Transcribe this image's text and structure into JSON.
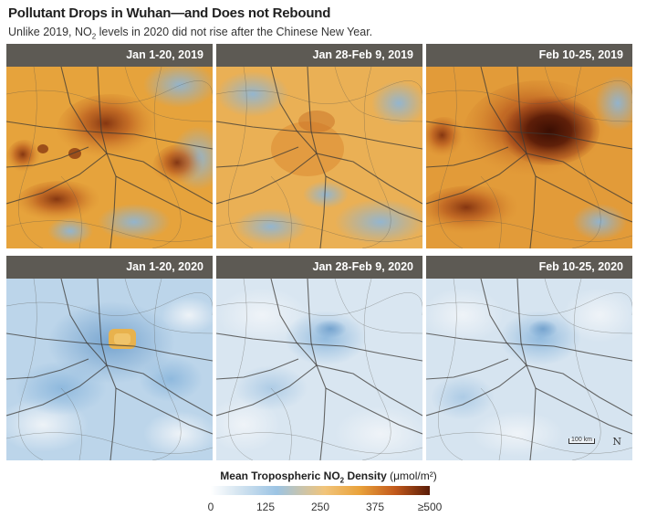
{
  "header": {
    "title": "Pollutant Drops in Wuhan—and Does not Rebound",
    "subtitle_pre": "Unlike 2019, NO",
    "subtitle_sub": "2",
    "subtitle_post": " levels in 2020 did not rise after the Chinese New Year."
  },
  "panels": [
    {
      "label": "Jan 1-20, 2019",
      "no2_level": "high"
    },
    {
      "label": "Jan 28-Feb 9, 2019",
      "no2_level": "moderate"
    },
    {
      "label": "Feb 10-25, 2019",
      "no2_level": "very high"
    },
    {
      "label": "Jan 1-20, 2020",
      "no2_level": "low-moderate"
    },
    {
      "label": "Jan 28-Feb 9, 2020",
      "no2_level": "low"
    },
    {
      "label": "Feb 10-25, 2020",
      "no2_level": "low"
    }
  ],
  "map_overlay": {
    "scale_label": "100 km",
    "north_label": "N"
  },
  "legend": {
    "title_pre": "Mean Tropospheric NO",
    "title_sub": "2",
    "title_mid": " Density ",
    "unit": "(μmol/m²)",
    "ticks": [
      "0",
      "125",
      "250",
      "375",
      "≥500"
    ],
    "colors": {
      "low": "#ffffff",
      "mid_low": "#9cc4e4",
      "mid": "#f1c47a",
      "high": "#e9a23b",
      "very_high": "#5a1c08"
    }
  }
}
